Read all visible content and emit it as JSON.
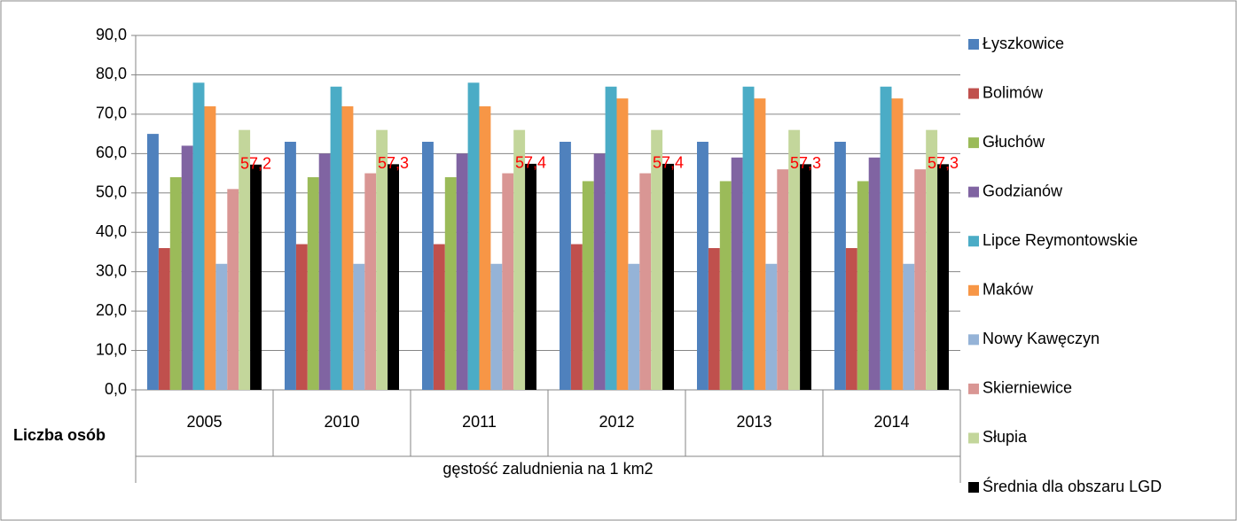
{
  "chart_data": {
    "type": "bar",
    "y_label": "Liczba osób",
    "x_label": "gęstość zaludnienia na 1 km2",
    "categories": [
      "2005",
      "2010",
      "2011",
      "2012",
      "2013",
      "2014"
    ],
    "series": [
      {
        "name": "Łyszkowice",
        "color": "#4f81bd",
        "values": [
          65,
          63,
          63,
          63,
          63,
          63
        ]
      },
      {
        "name": "Bolimów",
        "color": "#c0504d",
        "values": [
          36,
          37,
          37,
          37,
          36,
          36
        ]
      },
      {
        "name": "Głuchów",
        "color": "#9bbb59",
        "values": [
          54,
          54,
          54,
          53,
          53,
          53
        ]
      },
      {
        "name": "Godzianów",
        "color": "#8064a2",
        "values": [
          62,
          60,
          60,
          60,
          59,
          59
        ]
      },
      {
        "name": "Lipce Reymontowskie",
        "color": "#4bacc6",
        "values": [
          78,
          77,
          78,
          77,
          77,
          77
        ]
      },
      {
        "name": "Maków",
        "color": "#f79646",
        "values": [
          72,
          72,
          72,
          74,
          74,
          74
        ]
      },
      {
        "name": "Nowy Kawęczyn",
        "color": "#95b3d7",
        "values": [
          32,
          32,
          32,
          32,
          32,
          32
        ]
      },
      {
        "name": "Skierniewice",
        "color": "#d99694",
        "values": [
          51,
          55,
          55,
          55,
          56,
          56
        ]
      },
      {
        "name": "Słupia",
        "color": "#c3d69b",
        "values": [
          66,
          66,
          66,
          66,
          66,
          66
        ]
      },
      {
        "name": "Średnia dla obszaru LGD",
        "color": "#000000",
        "values": [
          57.2,
          57.3,
          57.4,
          57.4,
          57.3,
          57.3
        ],
        "value_labels": [
          "57,2",
          "57,3",
          "57,4",
          "57,4",
          "57,3",
          "57,3"
        ],
        "value_label_color": "#ff0000"
      }
    ],
    "ylim": [
      0,
      90
    ],
    "yticks": [
      {
        "value": 0,
        "label": "0,0"
      },
      {
        "value": 10,
        "label": "10,0"
      },
      {
        "value": 20,
        "label": "20,0"
      },
      {
        "value": 30,
        "label": "30,0"
      },
      {
        "value": 40,
        "label": "40,0"
      },
      {
        "value": 50,
        "label": "50,0"
      },
      {
        "value": 60,
        "label": "60,0"
      },
      {
        "value": 70,
        "label": "70,0"
      },
      {
        "value": 80,
        "label": "80,0"
      },
      {
        "value": 90,
        "label": "90,0"
      }
    ],
    "grid": true,
    "legend": "right"
  }
}
